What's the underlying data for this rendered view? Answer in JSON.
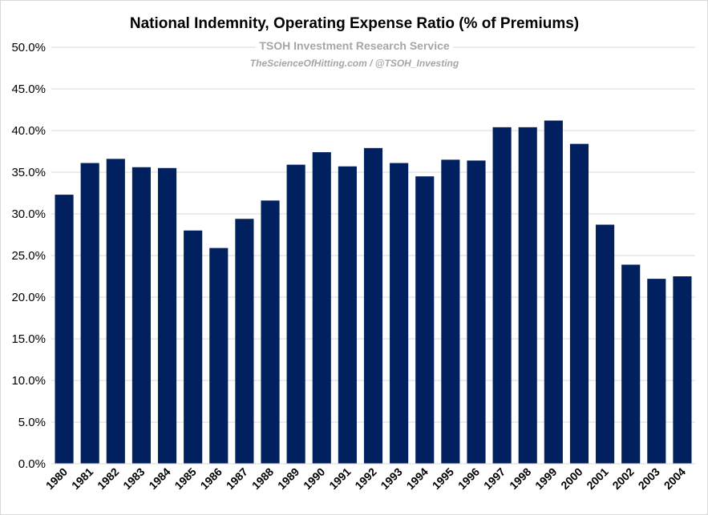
{
  "chart_data": {
    "type": "bar",
    "title": "National Indemnity, Operating Expense Ratio (% of Premiums)",
    "watermark": {
      "line1": "TSOH Investment Research Service",
      "line2": "TheScienceOfHitting.com / @TSOH_Investing"
    },
    "categories": [
      "1980",
      "1981",
      "1982",
      "1983",
      "1984",
      "1985",
      "1986",
      "1987",
      "1988",
      "1989",
      "1990",
      "1991",
      "1992",
      "1993",
      "1994",
      "1995",
      "1996",
      "1997",
      "1998",
      "1999",
      "2000",
      "2001",
      "2002",
      "2003",
      "2004"
    ],
    "values": [
      32.3,
      36.1,
      36.6,
      35.6,
      35.5,
      28.0,
      25.9,
      29.4,
      31.6,
      35.9,
      37.4,
      35.7,
      37.9,
      36.1,
      34.5,
      36.5,
      36.4,
      40.4,
      40.4,
      41.2,
      38.4,
      28.7,
      23.9,
      22.2,
      22.5
    ],
    "ylim": [
      0,
      50
    ],
    "yticks": [
      "0.0%",
      "5.0%",
      "10.0%",
      "15.0%",
      "20.0%",
      "25.0%",
      "30.0%",
      "35.0%",
      "40.0%",
      "45.0%",
      "50.0%"
    ],
    "ytick_values": [
      0,
      5,
      10,
      15,
      20,
      25,
      30,
      35,
      40,
      45,
      50
    ],
    "xlabel": "",
    "ylabel": "",
    "grid": true,
    "legend": "none",
    "colors": {
      "bar": "#002060",
      "grid": "#d9d9d9"
    }
  }
}
